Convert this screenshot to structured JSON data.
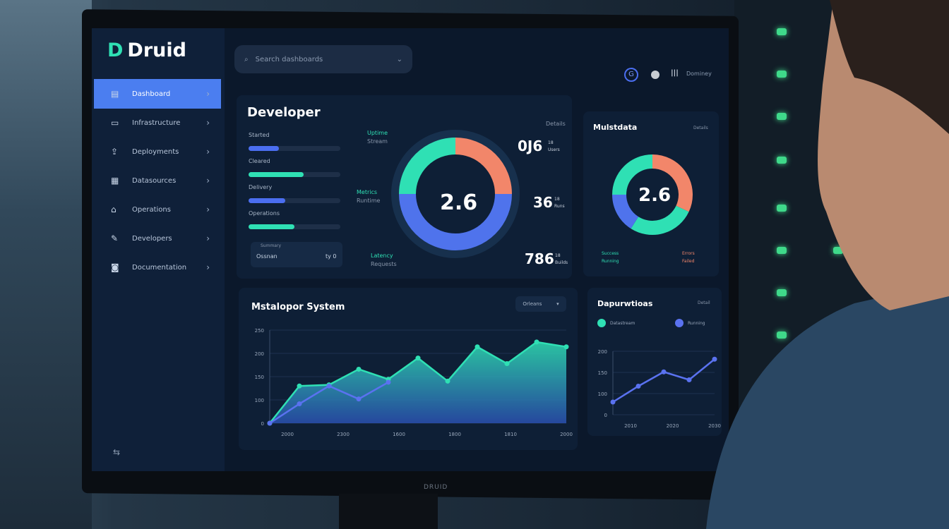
{
  "app": {
    "name": "Druid",
    "logo_icon": "d-logo-icon",
    "monitor_brand": "DRUID"
  },
  "search": {
    "placeholder": "Search dashboards",
    "icon": "search-icon"
  },
  "topbar": {
    "icons": [
      "g-icon",
      "avatar-icon",
      "grid-icon"
    ],
    "user_label": "Dominey"
  },
  "sidebar": {
    "items": [
      {
        "label": "Dashboard",
        "icon": "layers-icon",
        "active": true
      },
      {
        "label": "Infrastructure",
        "icon": "monitor-icon"
      },
      {
        "label": "Deployments",
        "icon": "upload-icon"
      },
      {
        "label": "Datasources",
        "icon": "database-icon"
      },
      {
        "label": "Operations",
        "icon": "building-icon"
      },
      {
        "label": "Developers",
        "icon": "edit-icon"
      },
      {
        "label": "Documentation",
        "icon": "disk-icon"
      }
    ],
    "footer_icon": "collapse-icon"
  },
  "developer": {
    "title": "Developer",
    "corner": "Details",
    "bars": [
      {
        "label": "Started",
        "value": 0.33,
        "color": "#4b6ef0"
      },
      {
        "label": "Cleared",
        "value": 0.6,
        "color": "#2fe0b4"
      },
      {
        "label": "Delivery",
        "value": 0.4,
        "color": "#4b6ef0"
      },
      {
        "label": "Operations",
        "value": 0.5,
        "color": "#2fe0b4"
      }
    ],
    "summary": {
      "caption": "Summary",
      "label": "Ossnan",
      "value": "ty 0"
    },
    "donut": {
      "center": "2.6",
      "segments": [
        {
          "value": 25,
          "color": "#f2866a"
        },
        {
          "value": 50,
          "color": "#4f73ec"
        },
        {
          "value": 25,
          "color": "#2fe0b4"
        }
      ]
    },
    "callouts": [
      {
        "big": "0J6",
        "sub1": "18",
        "sub2": "Users"
      },
      {
        "big": "36",
        "sub1": "18",
        "sub2": "Runs"
      },
      {
        "big": "786",
        "sub1": "18",
        "sub2": "Builds"
      }
    ],
    "left_labels": [
      {
        "l1": "Uptime",
        "l2": "Stream"
      },
      {
        "l1": "Metrics",
        "l2": "Runtime"
      },
      {
        "l1": "Latency",
        "l2": "Requests"
      }
    ]
  },
  "multidata": {
    "title": "Mulstdata",
    "corner": "Details",
    "center": "2.6",
    "segments": [
      {
        "value": 32,
        "color": "#f2866a"
      },
      {
        "value": 27,
        "color": "#2fe0b4"
      },
      {
        "value": 16,
        "color": "#4f73ec"
      },
      {
        "value": 25,
        "color": "#2fe0b4"
      }
    ],
    "legend": [
      {
        "l1": "Success",
        "l2": "Running",
        "color": "#2fe0b4"
      },
      {
        "l1": "Errors",
        "l2": "Failed",
        "color": "#f2866a"
      }
    ]
  },
  "chart_data": [
    {
      "type": "area",
      "title": "Mstalopor System",
      "button": "Orleans",
      "button_icon": "chevron-icon",
      "yticks": [
        "0",
        "100",
        "150",
        "200",
        "250"
      ],
      "xticks": [
        "2000",
        "2300",
        "1600",
        "1800",
        "1810",
        "2000"
      ],
      "ylim": [
        0,
        250
      ],
      "series": [
        {
          "color": "#2fe0b4",
          "values": [
            0,
            100,
            103,
            145,
            118,
            175,
            113,
            205,
            160,
            218,
            205
          ]
        },
        {
          "color": "#5a72f0",
          "values": [
            0,
            52,
            100,
            65,
            110
          ]
        }
      ]
    },
    {
      "type": "line",
      "title": "Dapurwtioas",
      "corner": "Detail",
      "legend": [
        {
          "label": "Datastream",
          "color": "#2fe0b4"
        },
        {
          "label": "Running",
          "color": "#5a72f0"
        }
      ],
      "yticks": [
        "0",
        "100",
        "150",
        "200"
      ],
      "xticks": [
        "2010",
        "2020",
        "2030"
      ],
      "ylim": [
        0,
        200
      ],
      "series": [
        {
          "color": "#5a72f0",
          "values": [
            40,
            90,
            135,
            110,
            175
          ]
        }
      ]
    }
  ]
}
